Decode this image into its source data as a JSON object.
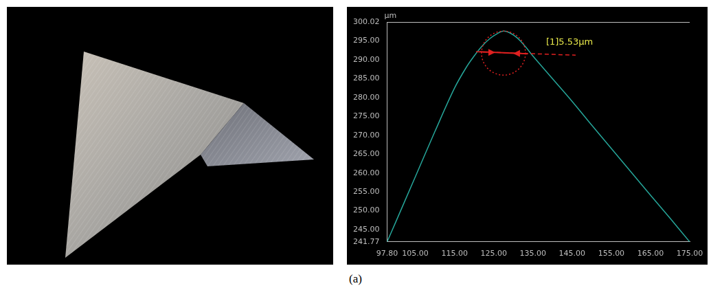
{
  "panel_label": "(a)",
  "chart_data": {
    "type": "line",
    "ylabel": "μm",
    "annotations": [
      "[1]5.53μm"
    ],
    "x": [
      97.8,
      100,
      105,
      110,
      115,
      118,
      120,
      122,
      124,
      126,
      127.5,
      129,
      131,
      133,
      135,
      140,
      145,
      150,
      155,
      160,
      165,
      170,
      175
    ],
    "values": [
      241.77,
      247,
      259,
      271,
      282.5,
      288,
      291,
      293.6,
      295.6,
      297,
      297.6,
      297.2,
      295.8,
      293.6,
      291,
      285,
      279,
      272.7,
      266.5,
      260.3,
      254.1,
      248,
      241.77
    ],
    "color": "#26a69a",
    "xlim": [
      97.8,
      175
    ],
    "xticks": [
      {
        "value": 97.8,
        "label": "97.80"
      },
      {
        "value": 105,
        "label": "105.00"
      },
      {
        "value": 115,
        "label": "115.00"
      },
      {
        "value": 125,
        "label": "125.00"
      },
      {
        "value": 135,
        "label": "135.00"
      },
      {
        "value": 145,
        "label": "145.00"
      },
      {
        "value": 155,
        "label": "155.00"
      },
      {
        "value": 165,
        "label": "165.00"
      },
      {
        "value": 175,
        "label": "175.00"
      }
    ],
    "ylim": [
      241.77,
      300.02
    ],
    "yticks": [
      241.77,
      {
        "value": 245,
        "label": "245.00"
      },
      {
        "value": 250,
        "label": "250.00"
      },
      {
        "value": 255,
        "label": "255.00"
      },
      {
        "value": 260,
        "label": "260.00"
      },
      {
        "value": 265,
        "label": "265.00"
      },
      {
        "value": 270,
        "label": "270.00"
      },
      {
        "value": 275,
        "label": "275.00"
      },
      {
        "value": 280,
        "label": "280.00"
      },
      {
        "value": 285,
        "label": "285.00"
      },
      {
        "value": 290,
        "label": "290.00"
      },
      {
        "value": 295,
        "label": "295.00"
      },
      300.02
    ],
    "grid": false
  }
}
